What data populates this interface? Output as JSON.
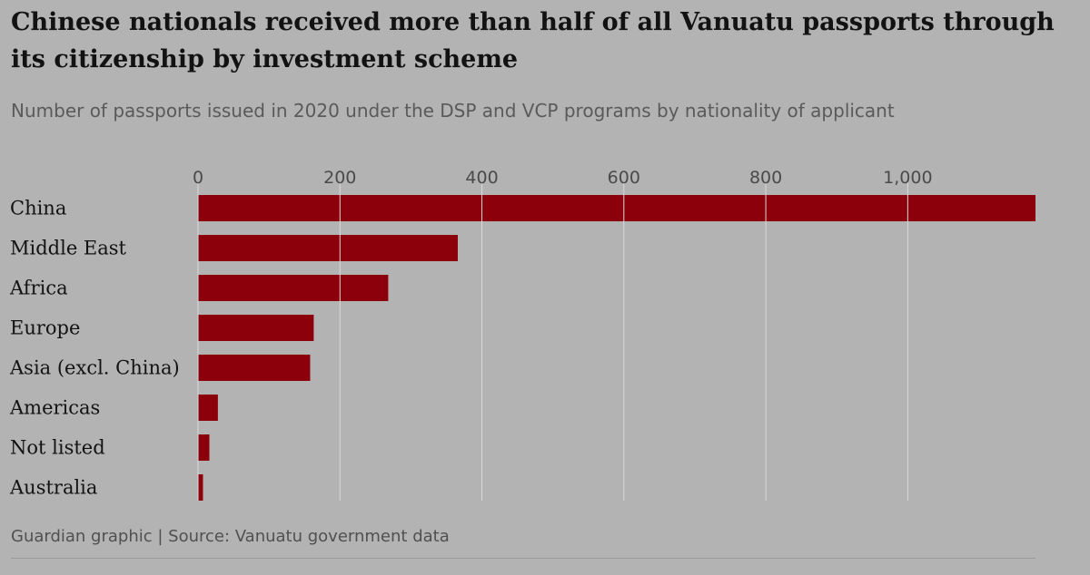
{
  "title": "Chinese nationals received more than half of all Vanuatu passports through its citizenship by investment scheme",
  "subtitle": "Number of passports issued in 2020 under the DSP and VCP programs by nationality of applicant",
  "footer": "Guardian graphic | Source: Vanuatu government data",
  "colors": {
    "bar": "#8b000b",
    "gridline": "#d9d9d9",
    "background": "#b3b3b3"
  },
  "chart_data": {
    "type": "bar",
    "orientation": "horizontal",
    "title": "Chinese nationals received more than half of all Vanuatu passports through its citizenship by investment scheme",
    "subtitle": "Number of passports issued in 2020 under the DSP and VCP programs by nationality of applicant",
    "categories": [
      "China",
      "Middle East",
      "Africa",
      "Europe",
      "Asia (excl. China)",
      "Americas",
      "Not listed",
      "Australia"
    ],
    "values": [
      1180,
      366,
      268,
      163,
      158,
      28,
      16,
      7
    ],
    "xlim": [
      0,
      1180
    ],
    "ticks": [
      0,
      200,
      400,
      600,
      800,
      1000
    ],
    "tick_labels": [
      "0",
      "200",
      "400",
      "600",
      "800",
      "1,000"
    ],
    "axis_position": "top",
    "grid": true,
    "legend": "none"
  }
}
